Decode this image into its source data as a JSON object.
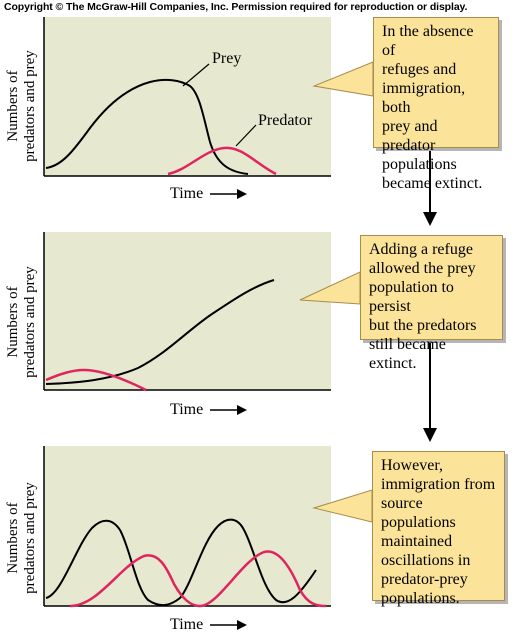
{
  "copyright": "Copyright © The McGraw-Hill Companies, Inc. Permission required for reproduction or display.",
  "colors": {
    "panel_bg": "#e6e8cf",
    "prey": "#000000",
    "predator": "#e0245e",
    "callout_bg": "#fbe39a"
  },
  "panels": [
    {
      "ylabel_line1": "Numbers of",
      "ylabel_line2": "predators and prey",
      "xlabel": "Time",
      "labels": {
        "prey": "Prey",
        "predator": "Predator"
      },
      "callout": [
        "In the absence of",
        "refuges and",
        "immigration, both",
        "prey and predator",
        "populations",
        "became extinct."
      ]
    },
    {
      "ylabel_line1": "Numbers of",
      "ylabel_line2": "predators and prey",
      "xlabel": "Time",
      "callout": [
        "Adding a refuge",
        "allowed the prey",
        "population to persist",
        "but the predators",
        "still became extinct."
      ]
    },
    {
      "ylabel_line1": "Numbers of",
      "ylabel_line2": "predators and prey",
      "xlabel": "Time",
      "callout": [
        "However,",
        "immigration from",
        "source populations",
        "maintained",
        "oscillations in",
        "predator-prey",
        "populations."
      ]
    }
  ]
}
